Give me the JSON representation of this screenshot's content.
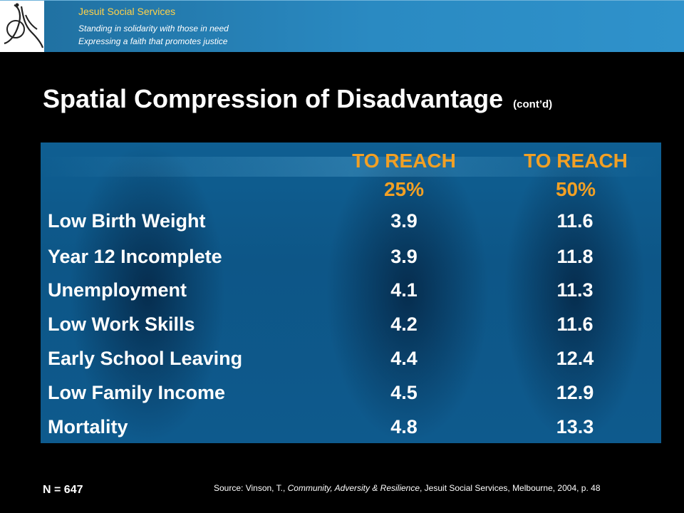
{
  "header": {
    "org_name": "Jesuit Social Services",
    "tagline_1": "Standing in solidarity with those in need",
    "tagline_2": "Expressing a faith that promotes justice",
    "colors": {
      "bar": "#2a8ac2",
      "org_name": "#ffd24a"
    }
  },
  "slide": {
    "title": "Spatial Compression of Disadvantage",
    "subtitle": "(cont’d)"
  },
  "table": {
    "columns": [
      {
        "line1": "",
        "line2": ""
      },
      {
        "line1": "TO REACH",
        "line2": "25%"
      },
      {
        "line1": "TO REACH",
        "line2": "50%"
      }
    ],
    "rows": [
      {
        "label": "Low Birth Weight",
        "reach_25": "3.9",
        "reach_50": "11.6"
      },
      {
        "label": "Year 12 Incomplete",
        "reach_25": "3.9",
        "reach_50": "11.8"
      },
      {
        "label": "Unemployment",
        "reach_25": "4.1",
        "reach_50": "11.3"
      },
      {
        "label": "Low Work Skills",
        "reach_25": "4.2",
        "reach_50": "11.6"
      },
      {
        "label": "Early School Leaving",
        "reach_25": "4.4",
        "reach_50": "12.4"
      },
      {
        "label": "Low Family Income",
        "reach_25": "4.5",
        "reach_50": "12.9"
      },
      {
        "label": "Mortality",
        "reach_25": "4.8",
        "reach_50": "13.3"
      }
    ],
    "colors": {
      "header_text": "#f2a024",
      "panel": "#0e5a8d",
      "cell_text": "#ffffff"
    }
  },
  "footer": {
    "n_note": "N = 647",
    "source_prefix": "Source:  Vinson, T., ",
    "source_title": "Community,  Adversity & Resilience",
    "source_suffix": ", Jesuit Social Services, Melbourne, 2004, p.  48"
  }
}
